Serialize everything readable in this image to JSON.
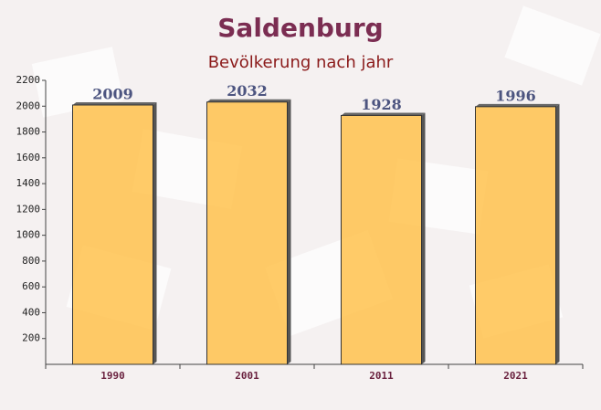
{
  "chart_data": {
    "type": "bar",
    "title": "Saldenburg",
    "subtitle": "Bevölkerung nach jahr",
    "categories": [
      "1990",
      "2001",
      "2011",
      "2021"
    ],
    "values": [
      2009,
      2032,
      1928,
      1996
    ],
    "color": "#ffc24d",
    "ylim": [
      0,
      2200
    ],
    "yticks": [
      200,
      400,
      600,
      800,
      1000,
      1200,
      1400,
      1600,
      1800,
      2000,
      2200
    ]
  }
}
